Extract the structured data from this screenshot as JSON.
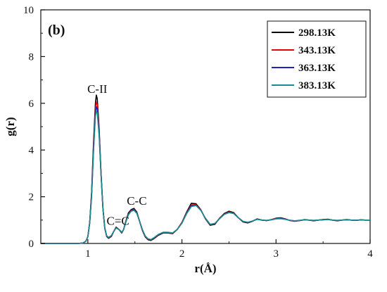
{
  "chart_data": {
    "type": "line",
    "panel_label": "(b)",
    "title": "",
    "xlabel": "r(Å)",
    "ylabel": "g(r)",
    "xlim": [
      0.5,
      4.0
    ],
    "ylim": [
      0,
      10
    ],
    "xticks": [
      1,
      2,
      3,
      4
    ],
    "xtick_labels": [
      "1",
      "2",
      "3",
      "4"
    ],
    "yticks": [
      0,
      2,
      4,
      6,
      8,
      10
    ],
    "ytick_labels": [
      "0",
      "2",
      "4",
      "6",
      "8",
      "10"
    ],
    "grid": false,
    "legend_position": "top-right",
    "annotations": [
      {
        "text": "C-II",
        "x": 1.1,
        "y": 6.45
      },
      {
        "text": "C=C",
        "x": 1.32,
        "y": 0.8
      },
      {
        "text": "C-C",
        "x": 1.52,
        "y": 1.65
      }
    ],
    "series": [
      {
        "name": "298.13K",
        "color": "#000000",
        "x": [
          0.5,
          0.9,
          0.95,
          0.98,
          1.0,
          1.02,
          1.04,
          1.06,
          1.08,
          1.09,
          1.1,
          1.12,
          1.14,
          1.16,
          1.18,
          1.2,
          1.22,
          1.25,
          1.28,
          1.3,
          1.33,
          1.36,
          1.38,
          1.4,
          1.43,
          1.46,
          1.49,
          1.52,
          1.55,
          1.58,
          1.61,
          1.64,
          1.67,
          1.7,
          1.75,
          1.8,
          1.85,
          1.9,
          1.95,
          2.0,
          2.05,
          2.1,
          2.15,
          2.2,
          2.25,
          2.3,
          2.35,
          2.4,
          2.45,
          2.5,
          2.55,
          2.6,
          2.65,
          2.7,
          2.75,
          2.8,
          2.85,
          2.9,
          2.95,
          3.0,
          3.05,
          3.1,
          3.15,
          3.2,
          3.25,
          3.3,
          3.35,
          3.4,
          3.45,
          3.5,
          3.55,
          3.6,
          3.65,
          3.7,
          3.75,
          3.8,
          3.85,
          3.9,
          3.95,
          4.0
        ],
        "y": [
          0,
          0,
          0.02,
          0.1,
          0.3,
          0.9,
          2.2,
          4.3,
          6.0,
          6.35,
          6.2,
          4.9,
          3.0,
          1.5,
          0.65,
          0.3,
          0.22,
          0.3,
          0.55,
          0.7,
          0.6,
          0.45,
          0.6,
          0.9,
          1.3,
          1.45,
          1.5,
          1.35,
          0.95,
          0.55,
          0.28,
          0.16,
          0.13,
          0.2,
          0.35,
          0.45,
          0.45,
          0.42,
          0.6,
          0.9,
          1.35,
          1.72,
          1.7,
          1.45,
          1.05,
          0.78,
          0.82,
          1.08,
          1.28,
          1.38,
          1.32,
          1.1,
          0.92,
          0.88,
          0.95,
          1.05,
          1.0,
          0.98,
          1.02,
          1.08,
          1.1,
          1.05,
          0.98,
          0.95,
          0.98,
          1.02,
          1.0,
          0.97,
          1.0,
          1.02,
          1.04,
          1.0,
          0.97,
          1.0,
          1.02,
          1.0,
          0.99,
          1.01,
          1.0,
          1.0
        ]
      },
      {
        "name": "343.13K",
        "color": "#e60000",
        "x": [
          0.5,
          0.9,
          0.95,
          0.98,
          1.0,
          1.02,
          1.04,
          1.06,
          1.08,
          1.09,
          1.1,
          1.12,
          1.14,
          1.16,
          1.18,
          1.2,
          1.22,
          1.25,
          1.28,
          1.3,
          1.33,
          1.36,
          1.38,
          1.4,
          1.43,
          1.46,
          1.49,
          1.52,
          1.55,
          1.58,
          1.61,
          1.64,
          1.67,
          1.7,
          1.75,
          1.8,
          1.85,
          1.9,
          1.95,
          2.0,
          2.05,
          2.1,
          2.15,
          2.2,
          2.25,
          2.3,
          2.35,
          2.4,
          2.45,
          2.5,
          2.55,
          2.6,
          2.65,
          2.7,
          2.75,
          2.8,
          2.85,
          2.9,
          2.95,
          3.0,
          3.05,
          3.1,
          3.15,
          3.2,
          3.25,
          3.3,
          3.35,
          3.4,
          3.45,
          3.5,
          3.55,
          3.6,
          3.65,
          3.7,
          3.75,
          3.8,
          3.85,
          3.9,
          3.95,
          4.0
        ],
        "y": [
          0,
          0,
          0.02,
          0.1,
          0.3,
          0.9,
          2.1,
          4.1,
          5.8,
          6.05,
          5.95,
          4.8,
          3.0,
          1.5,
          0.66,
          0.31,
          0.24,
          0.32,
          0.55,
          0.68,
          0.6,
          0.46,
          0.6,
          0.88,
          1.26,
          1.42,
          1.46,
          1.32,
          0.95,
          0.57,
          0.3,
          0.18,
          0.15,
          0.22,
          0.37,
          0.46,
          0.46,
          0.43,
          0.6,
          0.9,
          1.32,
          1.65,
          1.66,
          1.44,
          1.06,
          0.8,
          0.84,
          1.08,
          1.26,
          1.35,
          1.3,
          1.1,
          0.93,
          0.9,
          0.96,
          1.04,
          1.0,
          0.98,
          1.02,
          1.07,
          1.08,
          1.04,
          0.98,
          0.96,
          0.98,
          1.01,
          1.0,
          0.98,
          1.0,
          1.02,
          1.03,
          1.0,
          0.98,
          1.0,
          1.01,
          1.0,
          0.99,
          1.01,
          1.0,
          1.0
        ]
      },
      {
        "name": "363.13K",
        "color": "#1f1fbf",
        "x": [
          0.5,
          0.9,
          0.95,
          0.98,
          1.0,
          1.02,
          1.04,
          1.06,
          1.08,
          1.09,
          1.1,
          1.12,
          1.14,
          1.16,
          1.18,
          1.2,
          1.22,
          1.25,
          1.28,
          1.3,
          1.33,
          1.36,
          1.38,
          1.4,
          1.43,
          1.46,
          1.49,
          1.52,
          1.55,
          1.58,
          1.61,
          1.64,
          1.67,
          1.7,
          1.75,
          1.8,
          1.85,
          1.9,
          1.95,
          2.0,
          2.05,
          2.1,
          2.15,
          2.2,
          2.25,
          2.3,
          2.35,
          2.4,
          2.45,
          2.5,
          2.55,
          2.6,
          2.65,
          2.7,
          2.75,
          2.8,
          2.85,
          2.9,
          2.95,
          3.0,
          3.05,
          3.1,
          3.15,
          3.2,
          3.25,
          3.3,
          3.35,
          3.4,
          3.45,
          3.5,
          3.55,
          3.6,
          3.65,
          3.7,
          3.75,
          3.8,
          3.85,
          3.9,
          3.95,
          4.0
        ],
        "y": [
          0,
          0,
          0.02,
          0.1,
          0.3,
          0.88,
          2.05,
          4.0,
          5.6,
          5.85,
          5.75,
          4.7,
          2.95,
          1.5,
          0.67,
          0.32,
          0.25,
          0.33,
          0.55,
          0.67,
          0.6,
          0.47,
          0.6,
          0.87,
          1.24,
          1.4,
          1.44,
          1.3,
          0.95,
          0.58,
          0.31,
          0.19,
          0.16,
          0.23,
          0.38,
          0.47,
          0.47,
          0.44,
          0.6,
          0.88,
          1.3,
          1.62,
          1.64,
          1.43,
          1.07,
          0.81,
          0.85,
          1.07,
          1.25,
          1.33,
          1.29,
          1.1,
          0.94,
          0.9,
          0.96,
          1.04,
          1.0,
          0.98,
          1.01,
          1.06,
          1.07,
          1.04,
          0.99,
          0.96,
          0.98,
          1.01,
          1.0,
          0.98,
          1.0,
          1.01,
          1.03,
          1.0,
          0.98,
          1.0,
          1.01,
          1.0,
          0.99,
          1.01,
          1.0,
          1.0
        ]
      },
      {
        "name": "383.13K",
        "color": "#1a8c8c",
        "x": [
          0.5,
          0.9,
          0.95,
          0.98,
          1.0,
          1.02,
          1.04,
          1.06,
          1.08,
          1.09,
          1.1,
          1.12,
          1.14,
          1.16,
          1.18,
          1.2,
          1.22,
          1.25,
          1.28,
          1.3,
          1.33,
          1.36,
          1.38,
          1.4,
          1.43,
          1.46,
          1.49,
          1.52,
          1.55,
          1.58,
          1.61,
          1.64,
          1.67,
          1.7,
          1.75,
          1.8,
          1.85,
          1.9,
          1.95,
          2.0,
          2.05,
          2.1,
          2.15,
          2.2,
          2.25,
          2.3,
          2.35,
          2.4,
          2.45,
          2.5,
          2.55,
          2.6,
          2.65,
          2.7,
          2.75,
          2.8,
          2.85,
          2.9,
          2.95,
          3.0,
          3.05,
          3.1,
          3.15,
          3.2,
          3.25,
          3.3,
          3.35,
          3.4,
          3.45,
          3.5,
          3.55,
          3.6,
          3.65,
          3.7,
          3.75,
          3.8,
          3.85,
          3.9,
          3.95,
          4.0
        ],
        "y": [
          0,
          0,
          0.02,
          0.1,
          0.3,
          0.86,
          2.0,
          3.9,
          5.45,
          5.65,
          5.6,
          4.6,
          2.9,
          1.48,
          0.68,
          0.33,
          0.26,
          0.34,
          0.55,
          0.66,
          0.6,
          0.48,
          0.6,
          0.86,
          1.22,
          1.38,
          1.42,
          1.29,
          0.95,
          0.59,
          0.32,
          0.2,
          0.17,
          0.24,
          0.39,
          0.48,
          0.48,
          0.45,
          0.6,
          0.87,
          1.28,
          1.58,
          1.62,
          1.42,
          1.08,
          0.82,
          0.86,
          1.06,
          1.24,
          1.32,
          1.28,
          1.1,
          0.95,
          0.91,
          0.96,
          1.03,
          1.0,
          0.99,
          1.01,
          1.05,
          1.06,
          1.03,
          0.99,
          0.97,
          0.99,
          1.01,
          1.0,
          0.99,
          1.0,
          1.01,
          1.02,
          1.0,
          0.99,
          1.0,
          1.01,
          1.0,
          0.99,
          1.0,
          1.0,
          1.0
        ]
      }
    ]
  }
}
